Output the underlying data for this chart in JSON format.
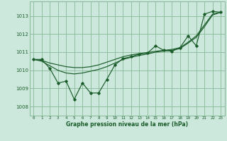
{
  "bg_color": "#cce8dc",
  "grid_color": "#88b898",
  "line_color": "#1a5c2a",
  "xlabel": "Graphe pression niveau de la mer (hPa)",
  "ylim": [
    1007.5,
    1013.8
  ],
  "xlim": [
    -0.5,
    23.5
  ],
  "yticks": [
    1008,
    1009,
    1010,
    1011,
    1012,
    1013
  ],
  "xticks": [
    0,
    1,
    2,
    3,
    4,
    5,
    6,
    7,
    8,
    9,
    10,
    11,
    12,
    13,
    14,
    15,
    16,
    17,
    18,
    19,
    20,
    21,
    22,
    23
  ],
  "series_jagged": [
    1010.6,
    1010.6,
    1010.1,
    1009.3,
    1009.4,
    1008.4,
    1009.3,
    1008.75,
    1008.75,
    1009.5,
    1010.3,
    1010.65,
    1010.75,
    1010.9,
    1010.95,
    1011.35,
    1011.1,
    1011.05,
    1011.25,
    1011.9,
    1011.35,
    1013.1,
    1013.25,
    1013.2
  ],
  "series_smooth": [
    1010.6,
    1010.55,
    1010.4,
    1010.3,
    1010.2,
    1010.15,
    1010.15,
    1010.2,
    1010.3,
    1010.45,
    1010.6,
    1010.75,
    1010.85,
    1010.92,
    1010.98,
    1011.05,
    1011.1,
    1011.15,
    1011.25,
    1011.55,
    1011.9,
    1012.5,
    1013.1,
    1013.2
  ],
  "series_trend": [
    1010.6,
    1010.5,
    1010.25,
    1010.0,
    1009.85,
    1009.8,
    1009.85,
    1009.95,
    1010.05,
    1010.2,
    1010.4,
    1010.6,
    1010.72,
    1010.82,
    1010.9,
    1011.0,
    1011.06,
    1011.1,
    1011.2,
    1011.5,
    1011.82,
    1012.4,
    1013.05,
    1013.2
  ]
}
